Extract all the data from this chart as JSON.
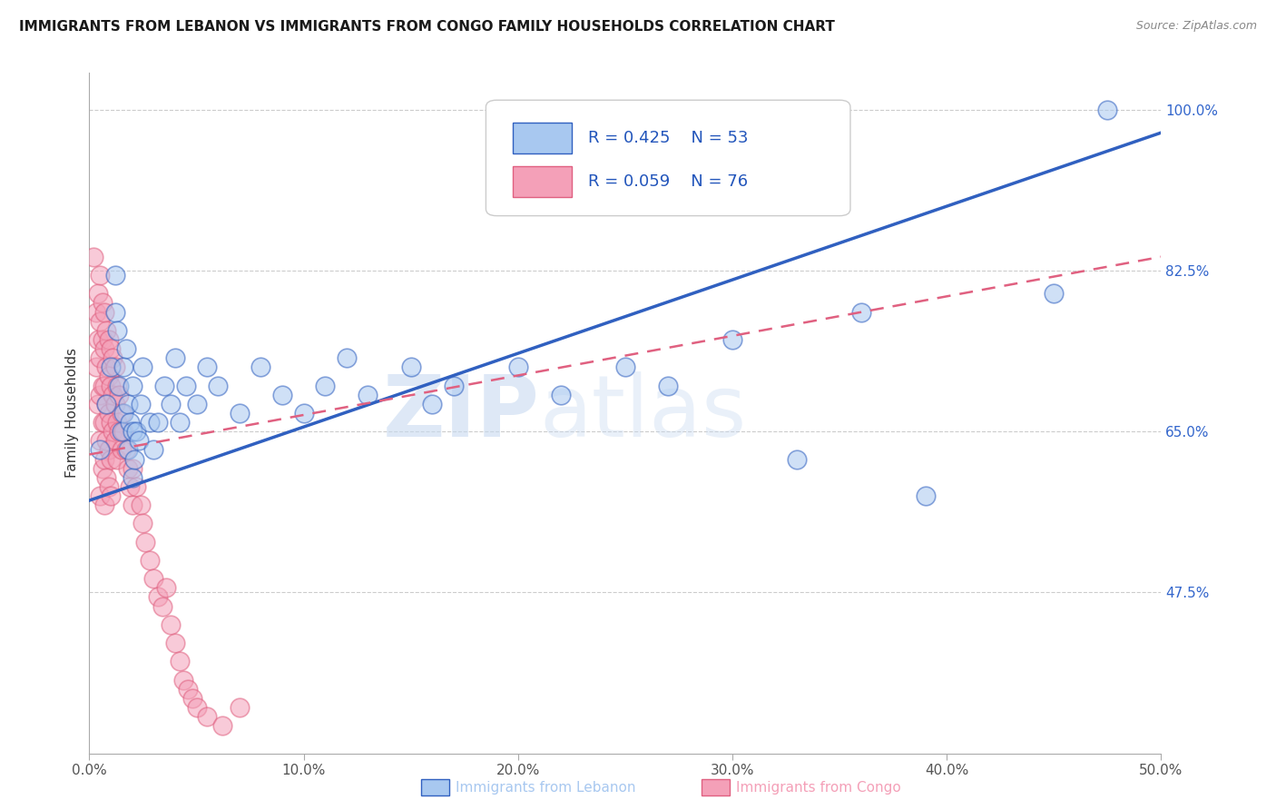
{
  "title": "IMMIGRANTS FROM LEBANON VS IMMIGRANTS FROM CONGO FAMILY HOUSEHOLDS CORRELATION CHART",
  "source": "Source: ZipAtlas.com",
  "ylabel": "Family Households",
  "xlabel_lebanon": "Immigrants from Lebanon",
  "xlabel_congo": "Immigrants from Congo",
  "xlim": [
    0.0,
    0.5
  ],
  "ylim": [
    0.3,
    1.04
  ],
  "xticks": [
    0.0,
    0.1,
    0.2,
    0.3,
    0.4,
    0.5
  ],
  "xticklabels": [
    "0.0%",
    "10.0%",
    "20.0%",
    "30.0%",
    "40.0%",
    "50.0%"
  ],
  "yticks_right": [
    0.475,
    0.65,
    0.825,
    1.0
  ],
  "yticks_right_labels": [
    "47.5%",
    "65.0%",
    "82.5%",
    "100.0%"
  ],
  "color_lebanon": "#a8c8f0",
  "color_congo": "#f4a0b8",
  "color_line_lebanon": "#3060c0",
  "color_line_congo": "#e06080",
  "watermark_zip": "ZIP",
  "watermark_atlas": "atlas",
  "title_fontsize": 11,
  "lebanon_line_x0": 0.0,
  "lebanon_line_y0": 0.575,
  "lebanon_line_x1": 0.5,
  "lebanon_line_y1": 0.975,
  "congo_line_x0": 0.0,
  "congo_line_y0": 0.625,
  "congo_line_x1": 0.5,
  "congo_line_y1": 0.84,
  "lebanon_x": [
    0.005,
    0.008,
    0.01,
    0.012,
    0.012,
    0.013,
    0.014,
    0.015,
    0.016,
    0.016,
    0.017,
    0.018,
    0.018,
    0.019,
    0.02,
    0.02,
    0.02,
    0.021,
    0.022,
    0.023,
    0.024,
    0.025,
    0.028,
    0.03,
    0.032,
    0.035,
    0.038,
    0.04,
    0.042,
    0.045,
    0.05,
    0.055,
    0.06,
    0.07,
    0.08,
    0.09,
    0.1,
    0.11,
    0.12,
    0.13,
    0.15,
    0.16,
    0.17,
    0.2,
    0.22,
    0.25,
    0.27,
    0.3,
    0.33,
    0.36,
    0.39,
    0.45,
    0.475
  ],
  "lebanon_y": [
    0.63,
    0.68,
    0.72,
    0.78,
    0.82,
    0.76,
    0.7,
    0.65,
    0.72,
    0.67,
    0.74,
    0.68,
    0.63,
    0.66,
    0.7,
    0.65,
    0.6,
    0.62,
    0.65,
    0.64,
    0.68,
    0.72,
    0.66,
    0.63,
    0.66,
    0.7,
    0.68,
    0.73,
    0.66,
    0.7,
    0.68,
    0.72,
    0.7,
    0.67,
    0.72,
    0.69,
    0.67,
    0.7,
    0.73,
    0.69,
    0.72,
    0.68,
    0.7,
    0.72,
    0.69,
    0.72,
    0.7,
    0.75,
    0.62,
    0.78,
    0.58,
    0.8,
    1.0
  ],
  "congo_x": [
    0.002,
    0.003,
    0.003,
    0.004,
    0.004,
    0.004,
    0.005,
    0.005,
    0.005,
    0.005,
    0.005,
    0.005,
    0.006,
    0.006,
    0.006,
    0.006,
    0.006,
    0.007,
    0.007,
    0.007,
    0.007,
    0.007,
    0.007,
    0.008,
    0.008,
    0.008,
    0.008,
    0.008,
    0.009,
    0.009,
    0.009,
    0.009,
    0.009,
    0.01,
    0.01,
    0.01,
    0.01,
    0.01,
    0.011,
    0.011,
    0.011,
    0.012,
    0.012,
    0.012,
    0.013,
    0.013,
    0.013,
    0.014,
    0.014,
    0.015,
    0.015,
    0.016,
    0.017,
    0.018,
    0.019,
    0.02,
    0.02,
    0.022,
    0.024,
    0.025,
    0.026,
    0.028,
    0.03,
    0.032,
    0.034,
    0.036,
    0.038,
    0.04,
    0.042,
    0.044,
    0.046,
    0.048,
    0.05,
    0.055,
    0.062,
    0.07
  ],
  "congo_y": [
    0.84,
    0.78,
    0.72,
    0.8,
    0.75,
    0.68,
    0.82,
    0.77,
    0.73,
    0.69,
    0.64,
    0.58,
    0.79,
    0.75,
    0.7,
    0.66,
    0.61,
    0.78,
    0.74,
    0.7,
    0.66,
    0.62,
    0.57,
    0.76,
    0.72,
    0.68,
    0.64,
    0.6,
    0.75,
    0.71,
    0.67,
    0.63,
    0.59,
    0.74,
    0.7,
    0.66,
    0.62,
    0.58,
    0.73,
    0.69,
    0.65,
    0.72,
    0.68,
    0.64,
    0.7,
    0.66,
    0.62,
    0.69,
    0.65,
    0.67,
    0.63,
    0.65,
    0.63,
    0.61,
    0.59,
    0.57,
    0.61,
    0.59,
    0.57,
    0.55,
    0.53,
    0.51,
    0.49,
    0.47,
    0.46,
    0.48,
    0.44,
    0.42,
    0.4,
    0.38,
    0.37,
    0.36,
    0.35,
    0.34,
    0.33,
    0.35
  ]
}
